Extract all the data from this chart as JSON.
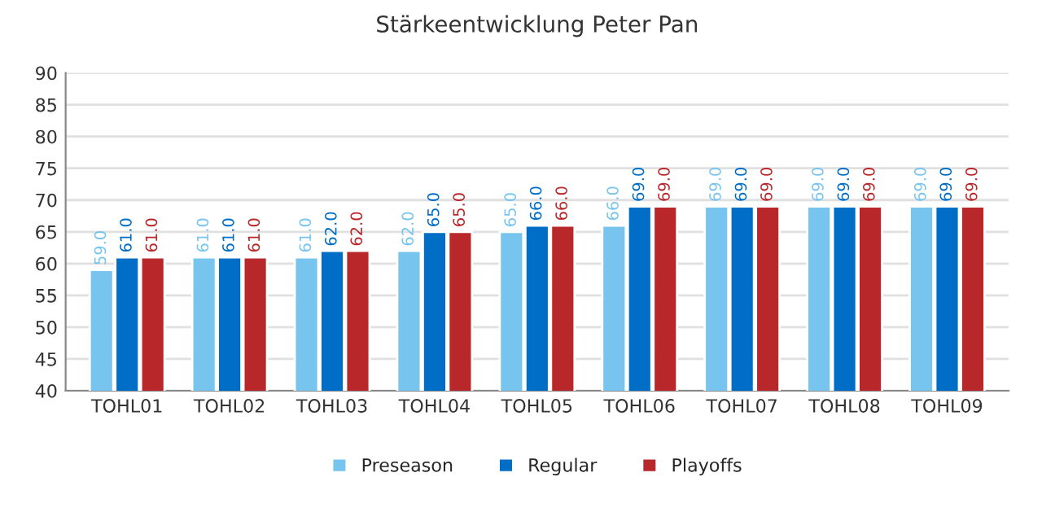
{
  "chart_data": {
    "type": "bar",
    "title": "Stärkeentwicklung Peter Pan",
    "categories": [
      "TOHL01",
      "TOHL02",
      "TOHL03",
      "TOHL04",
      "TOHL05",
      "TOHL06",
      "TOHL07",
      "TOHL08",
      "TOHL09"
    ],
    "series": [
      {
        "name": "Preseason",
        "color": "#77c4ef",
        "values": [
          59,
          61,
          61,
          62,
          65,
          66,
          69,
          69,
          69
        ],
        "value_labels": [
          "59.0",
          "61.0",
          "61.0",
          "62.0",
          "65.0",
          "66.0",
          "69.0",
          "69.0",
          "69.0"
        ]
      },
      {
        "name": "Regular",
        "color": "#006ec6",
        "values": [
          61,
          61,
          62,
          65,
          66,
          69,
          69,
          69,
          69
        ],
        "value_labels": [
          "61.0",
          "61.0",
          "62.0",
          "65.0",
          "66.0",
          "69.0",
          "69.0",
          "69.0",
          "69.0"
        ]
      },
      {
        "name": "Playoffs",
        "color": "#b8272a",
        "values": [
          61,
          61,
          62,
          65,
          66,
          69,
          69,
          69,
          69
        ],
        "value_labels": [
          "61.0",
          "61.0",
          "62.0",
          "65.0",
          "66.0",
          "69.0",
          "69.0",
          "69.0",
          "69.0"
        ]
      }
    ],
    "ylim": [
      40,
      90
    ],
    "yticks": [
      40,
      45,
      50,
      55,
      60,
      65,
      70,
      75,
      80,
      85,
      90
    ],
    "grid": "y",
    "legend": "bottom"
  }
}
